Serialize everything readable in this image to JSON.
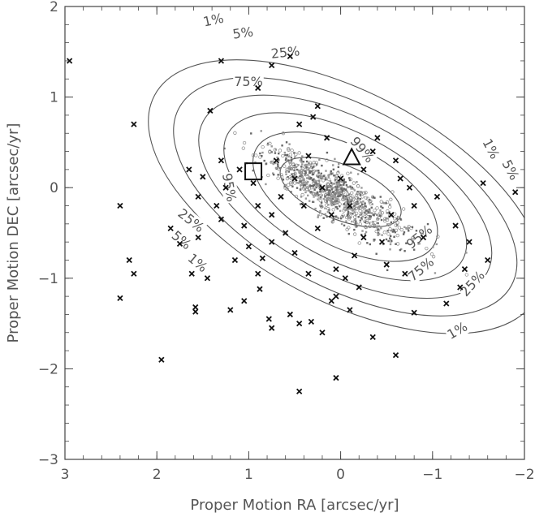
{
  "chart_data": {
    "type": "scatter",
    "xlabel": "Proper Motion RA [arcsec/yr]",
    "ylabel": "Proper Motion DEC [arcsec/yr]",
    "xlim": [
      3,
      -2
    ],
    "ylim": [
      -3,
      2
    ],
    "xticks": [
      "3",
      "2",
      "1",
      "0",
      "−1",
      "−2"
    ],
    "yticks": [
      "−3",
      "−2",
      "−1",
      "0",
      "1",
      "2"
    ],
    "contours": [
      {
        "label": "1%",
        "center": [
          -0.05,
          -0.1
        ],
        "semi_major": 2.35,
        "semi_minor": 1.15,
        "angle_deg": -28
      },
      {
        "label": "5%",
        "center": [
          -0.05,
          -0.1
        ],
        "semi_major": 2.05,
        "semi_minor": 1.0,
        "angle_deg": -28
      },
      {
        "label": "25%",
        "center": [
          -0.05,
          -0.1
        ],
        "semi_major": 1.75,
        "semi_minor": 0.85,
        "angle_deg": -28
      },
      {
        "label": "75%",
        "center": [
          -0.05,
          -0.1
        ],
        "semi_major": 1.45,
        "semi_minor": 0.7,
        "angle_deg": -28
      },
      {
        "label": "95%",
        "center": [
          -0.05,
          -0.1
        ],
        "semi_major": 1.1,
        "semi_minor": 0.55,
        "angle_deg": -28
      },
      {
        "label": "99%",
        "center": [
          0.0,
          -0.05
        ],
        "semi_major": 0.7,
        "semi_minor": 0.3,
        "angle_deg": -22
      }
    ],
    "marked_stars": [
      [
        2.95,
        1.4
      ],
      [
        2.25,
        0.7
      ],
      [
        2.4,
        -0.2
      ],
      [
        2.3,
        -0.8
      ],
      [
        2.25,
        -0.95
      ],
      [
        2.4,
        -1.22
      ],
      [
        1.95,
        -1.9
      ],
      [
        1.85,
        -0.45
      ],
      [
        1.75,
        -0.62
      ],
      [
        1.55,
        -0.55
      ],
      [
        1.62,
        -0.95
      ],
      [
        1.58,
        -1.32
      ],
      [
        1.58,
        -1.37
      ],
      [
        1.45,
        -1.0
      ],
      [
        1.2,
        -1.35
      ],
      [
        1.3,
        1.4
      ],
      [
        1.42,
        0.85
      ],
      [
        1.3,
        0.3
      ],
      [
        1.5,
        0.12
      ],
      [
        1.55,
        -0.1
      ],
      [
        1.25,
        0.0
      ],
      [
        1.3,
        -0.35
      ],
      [
        1.05,
        -0.42
      ],
      [
        0.9,
        -0.95
      ],
      [
        0.88,
        -1.12
      ],
      [
        1.05,
        -1.25
      ],
      [
        0.78,
        -1.45
      ],
      [
        0.75,
        -1.55
      ],
      [
        0.5,
        -0.72
      ],
      [
        0.55,
        -1.4
      ],
      [
        0.45,
        -1.5
      ],
      [
        0.32,
        -1.48
      ],
      [
        0.2,
        -1.6
      ],
      [
        0.1,
        -1.25
      ],
      [
        0.05,
        -1.2
      ],
      [
        -0.05,
        -1.0
      ],
      [
        -0.1,
        -1.35
      ],
      [
        -0.2,
        -1.1
      ],
      [
        -0.35,
        -1.65
      ],
      [
        -0.5,
        -0.85
      ],
      [
        -0.6,
        -1.85
      ],
      [
        -0.7,
        -0.95
      ],
      [
        -0.8,
        -1.38
      ],
      [
        -1.15,
        -1.28
      ],
      [
        -1.3,
        -1.1
      ],
      [
        -1.35,
        -0.9
      ],
      [
        -1.4,
        -0.6
      ],
      [
        -1.25,
        -0.42
      ],
      [
        -0.8,
        -0.2
      ],
      [
        -0.75,
        0.0
      ],
      [
        -0.6,
        0.3
      ],
      [
        -0.4,
        0.55
      ],
      [
        -0.35,
        0.4
      ],
      [
        -0.65,
        0.1
      ],
      [
        -0.55,
        -0.3
      ],
      [
        -0.9,
        -0.55
      ],
      [
        -0.45,
        -0.6
      ],
      [
        -0.25,
        -0.55
      ],
      [
        -0.15,
        -0.75
      ],
      [
        0.05,
        -0.9
      ],
      [
        0.35,
        -0.95
      ],
      [
        0.25,
        -0.45
      ],
      [
        0.6,
        -0.5
      ],
      [
        0.75,
        -0.3
      ],
      [
        0.9,
        -0.2
      ],
      [
        0.7,
        0.3
      ],
      [
        0.45,
        0.7
      ],
      [
        0.3,
        0.78
      ],
      [
        0.25,
        0.9
      ],
      [
        0.15,
        0.55
      ],
      [
        0.35,
        0.35
      ],
      [
        0.5,
        0.1
      ],
      [
        0.2,
        0.0
      ],
      [
        0.0,
        0.1
      ],
      [
        -0.1,
        -0.2
      ],
      [
        0.1,
        -0.3
      ],
      [
        1.1,
        0.2
      ],
      [
        0.95,
        0.05
      ],
      [
        0.65,
        -0.1
      ],
      [
        0.55,
        1.45
      ],
      [
        0.9,
        1.1
      ],
      [
        0.75,
        1.35
      ],
      [
        0.45,
        -2.25
      ],
      [
        0.05,
        -2.1
      ],
      [
        -1.6,
        -0.8
      ],
      [
        -1.05,
        -0.1
      ],
      [
        -1.55,
        0.05
      ],
      [
        -1.9,
        -0.05
      ],
      [
        -0.25,
        0.2
      ],
      [
        0.4,
        -0.2
      ],
      [
        0.75,
        -0.6
      ],
      [
        1.0,
        -0.65
      ],
      [
        1.15,
        -0.8
      ],
      [
        0.85,
        -0.78
      ],
      [
        1.35,
        -0.2
      ],
      [
        1.65,
        0.2
      ]
    ],
    "special_markers": [
      {
        "shape": "square",
        "x": 0.95,
        "y": 0.18
      },
      {
        "shape": "triangle",
        "x": -0.12,
        "y": 0.32
      }
    ]
  }
}
